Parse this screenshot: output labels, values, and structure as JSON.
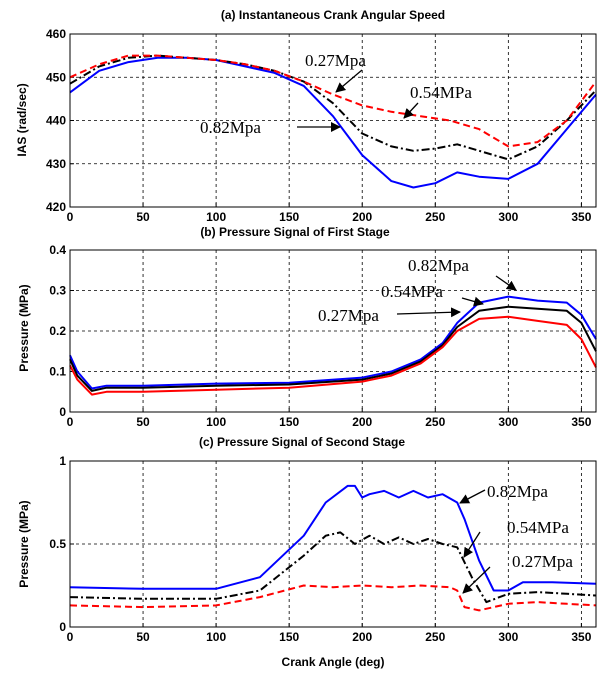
{
  "chart_data": [
    {
      "type": "line",
      "title": "(a) Instantaneous Crank Angular Speed",
      "xlabel": "",
      "ylabel": "IAS (rad/sec)",
      "xlim": [
        0,
        360
      ],
      "ylim": [
        420,
        460
      ],
      "xticks": [
        "0",
        "50",
        "100",
        "150",
        "200",
        "250",
        "300",
        "350"
      ],
      "yticks": [
        "420",
        "430",
        "440",
        "450",
        "460"
      ],
      "grid": true,
      "series": [
        {
          "name": "0.82Mpa",
          "color": "#0000ff",
          "style": "solid",
          "x": [
            0,
            20,
            40,
            60,
            80,
            100,
            120,
            140,
            160,
            180,
            200,
            220,
            235,
            250,
            265,
            280,
            300,
            320,
            340,
            360
          ],
          "y": [
            446.5,
            451.5,
            453.5,
            454.5,
            454.5,
            454,
            452.5,
            451,
            448,
            441,
            432,
            426,
            424.5,
            425.5,
            428,
            427,
            426.5,
            430,
            438,
            446
          ]
        },
        {
          "name": "0.54MPa",
          "color": "#000000",
          "style": "dashdot",
          "x": [
            0,
            20,
            40,
            60,
            80,
            100,
            120,
            140,
            160,
            180,
            200,
            220,
            235,
            250,
            265,
            280,
            300,
            320,
            340,
            360
          ],
          "y": [
            448.5,
            452.5,
            454.5,
            455,
            454.5,
            454,
            453,
            451.5,
            449,
            444,
            437,
            434,
            433,
            433.5,
            434.5,
            433,
            431,
            434,
            440,
            447
          ]
        },
        {
          "name": "0.27Mpa",
          "color": "#ff0000",
          "style": "dashed",
          "x": [
            0,
            20,
            40,
            60,
            80,
            100,
            120,
            140,
            160,
            180,
            200,
            220,
            240,
            260,
            280,
            300,
            320,
            340,
            360
          ],
          "y": [
            450,
            453,
            455,
            455,
            454.5,
            454,
            453,
            451.5,
            449,
            446,
            443.5,
            442,
            441,
            440,
            438,
            434,
            435,
            440,
            449
          ]
        }
      ],
      "annotations": [
        {
          "text": "0.27Mpa",
          "series": "0.27Mpa"
        },
        {
          "text": "0.54MPa",
          "series": "0.54MPa"
        },
        {
          "text": "0.82Mpa",
          "series": "0.82Mpa"
        }
      ]
    },
    {
      "type": "line",
      "title": "(b) Pressure Signal of First Stage",
      "xlabel": "",
      "ylabel": "Pressure (MPa)",
      "xlim": [
        0,
        360
      ],
      "ylim": [
        0,
        0.4
      ],
      "xticks": [
        "0",
        "50",
        "100",
        "150",
        "200",
        "250",
        "300",
        "350"
      ],
      "yticks": [
        "0",
        "0.1",
        "0.2",
        "0.3",
        "0.4"
      ],
      "grid": true,
      "series": [
        {
          "name": "0.82Mpa",
          "color": "#0000ff",
          "style": "solid",
          "x": [
            0,
            5,
            15,
            25,
            50,
            100,
            150,
            200,
            220,
            240,
            255,
            265,
            280,
            300,
            320,
            340,
            350,
            360
          ],
          "y": [
            0.14,
            0.1,
            0.058,
            0.065,
            0.065,
            0.07,
            0.072,
            0.085,
            0.1,
            0.13,
            0.17,
            0.22,
            0.27,
            0.285,
            0.275,
            0.27,
            0.24,
            0.18
          ]
        },
        {
          "name": "0.54MPa",
          "color": "#000000",
          "style": "solid",
          "x": [
            0,
            5,
            15,
            25,
            50,
            100,
            150,
            200,
            220,
            240,
            255,
            265,
            280,
            300,
            320,
            340,
            350,
            360
          ],
          "y": [
            0.13,
            0.09,
            0.052,
            0.06,
            0.06,
            0.065,
            0.068,
            0.08,
            0.095,
            0.125,
            0.165,
            0.21,
            0.25,
            0.26,
            0.255,
            0.25,
            0.22,
            0.15
          ]
        },
        {
          "name": "0.27Mpa",
          "color": "#ff0000",
          "style": "solid",
          "x": [
            0,
            5,
            15,
            25,
            50,
            100,
            150,
            200,
            220,
            240,
            255,
            265,
            280,
            300,
            320,
            340,
            350,
            360
          ],
          "y": [
            0.115,
            0.08,
            0.043,
            0.05,
            0.05,
            0.055,
            0.06,
            0.075,
            0.09,
            0.12,
            0.16,
            0.2,
            0.23,
            0.235,
            0.225,
            0.215,
            0.18,
            0.11
          ]
        }
      ],
      "annotations": [
        {
          "text": "0.82Mpa",
          "series": "0.82Mpa"
        },
        {
          "text": "0.54MPa",
          "series": "0.54MPa"
        },
        {
          "text": "0.27Mpa",
          "series": "0.27Mpa"
        }
      ]
    },
    {
      "type": "line",
      "title": "(c) Pressure Signal of Second Stage",
      "xlabel": "Crank Angle (deg)",
      "ylabel": "Pressure (MPa)",
      "xlim": [
        0,
        360
      ],
      "ylim": [
        0,
        1
      ],
      "xticks": [
        "0",
        "50",
        "100",
        "150",
        "200",
        "250",
        "300",
        "350"
      ],
      "yticks": [
        "0",
        "0.5",
        "1"
      ],
      "grid": true,
      "series": [
        {
          "name": "0.82Mpa",
          "color": "#0000ff",
          "style": "solid",
          "x": [
            0,
            50,
            100,
            130,
            160,
            175,
            190,
            195,
            200,
            205,
            215,
            225,
            235,
            245,
            255,
            265,
            270,
            280,
            290,
            300,
            310,
            330,
            360
          ],
          "y": [
            0.24,
            0.23,
            0.23,
            0.3,
            0.55,
            0.75,
            0.85,
            0.85,
            0.78,
            0.8,
            0.82,
            0.78,
            0.82,
            0.78,
            0.8,
            0.75,
            0.65,
            0.4,
            0.22,
            0.22,
            0.27,
            0.27,
            0.26
          ]
        },
        {
          "name": "0.54MPa",
          "color": "#000000",
          "style": "dashdot",
          "x": [
            0,
            50,
            100,
            130,
            160,
            175,
            185,
            195,
            205,
            215,
            225,
            235,
            245,
            255,
            265,
            275,
            285,
            300,
            320,
            340,
            360
          ],
          "y": [
            0.18,
            0.17,
            0.17,
            0.22,
            0.43,
            0.55,
            0.57,
            0.5,
            0.55,
            0.5,
            0.54,
            0.5,
            0.53,
            0.5,
            0.48,
            0.3,
            0.15,
            0.2,
            0.21,
            0.2,
            0.19
          ]
        },
        {
          "name": "0.27Mpa",
          "color": "#ff0000",
          "style": "dashed",
          "x": [
            0,
            50,
            100,
            130,
            160,
            180,
            200,
            220,
            240,
            260,
            265,
            270,
            280,
            300,
            320,
            340,
            360
          ],
          "y": [
            0.13,
            0.12,
            0.13,
            0.18,
            0.25,
            0.24,
            0.25,
            0.24,
            0.25,
            0.24,
            0.22,
            0.12,
            0.1,
            0.14,
            0.15,
            0.14,
            0.13
          ]
        }
      ],
      "annotations": [
        {
          "text": "0.82Mpa",
          "series": "0.82Mpa"
        },
        {
          "text": "0.54MPa",
          "series": "0.54MPa"
        },
        {
          "text": "0.27Mpa",
          "series": "0.27Mpa"
        }
      ]
    }
  ]
}
